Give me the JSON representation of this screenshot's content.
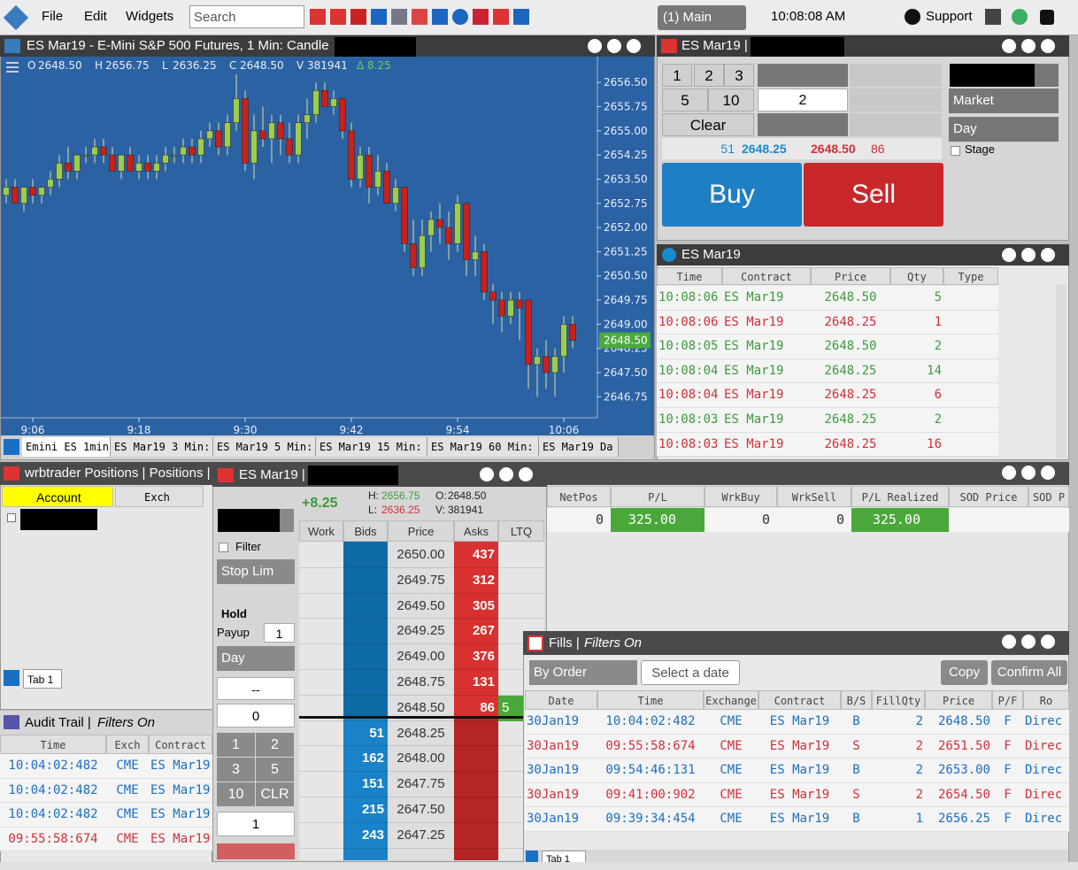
{
  "toolbar": {
    "menu": [
      "File",
      "Edit",
      "Widgets"
    ],
    "search": "Search",
    "workspace": "(1) Main",
    "clock": "10:08:08 AM",
    "support": "Support"
  },
  "chart_panel": {
    "title": "ES Mar19 - E-Mini S&P 500 Futures, 1 Min: Candle",
    "legend": [
      "O",
      "2648.50",
      "H",
      "2656.75",
      "L",
      "2636.25",
      "C",
      "2648.50",
      "V",
      "381941",
      "Δ",
      "8.25"
    ],
    "tabs": [
      "Emini ES 1min",
      "ES Mar19 3 Min:",
      "ES Mar19 5 Min:",
      "ES Mar19 15 Min:",
      "ES Mar19 60 Min:",
      "ES Mar19 Da"
    ]
  },
  "chart_data": {
    "type": "candlestick",
    "up_color": "#9ccc50",
    "down_color": "#c8201a",
    "candles": [
      [
        2653.0,
        2653.5,
        2652.75,
        2653.25
      ],
      [
        2653.25,
        2653.5,
        2652.75,
        2652.75
      ],
      [
        2652.75,
        2653.25,
        2652.5,
        2653.25
      ],
      [
        2653.25,
        2653.5,
        2652.75,
        2653.0
      ],
      [
        2653.0,
        2653.25,
        2652.75,
        2653.25
      ],
      [
        2653.25,
        2653.75,
        2653.0,
        2653.5
      ],
      [
        2653.5,
        2654.25,
        2653.25,
        2654.0
      ],
      [
        2654.0,
        2654.5,
        2653.5,
        2653.75
      ],
      [
        2653.75,
        2654.25,
        2653.5,
        2654.25
      ],
      [
        2654.25,
        2654.5,
        2654.0,
        2654.25
      ],
      [
        2654.25,
        2654.75,
        2654.0,
        2654.5
      ],
      [
        2654.5,
        2654.75,
        2654.0,
        2654.25
      ],
      [
        2654.25,
        2654.5,
        2653.75,
        2653.75
      ],
      [
        2653.75,
        2654.25,
        2653.5,
        2654.25
      ],
      [
        2654.25,
        2654.5,
        2653.75,
        2653.75
      ],
      [
        2653.75,
        2654.25,
        2653.5,
        2654.0
      ],
      [
        2654.0,
        2654.25,
        2653.5,
        2653.75
      ],
      [
        2653.75,
        2654.25,
        2653.5,
        2654.0
      ],
      [
        2654.0,
        2654.5,
        2653.75,
        2654.25
      ],
      [
        2654.25,
        2654.5,
        2654.0,
        2654.25
      ],
      [
        2654.25,
        2654.75,
        2654.0,
        2654.5
      ],
      [
        2654.5,
        2654.75,
        2654.0,
        2654.25
      ],
      [
        2654.25,
        2655.0,
        2654.0,
        2654.75
      ],
      [
        2654.75,
        2655.25,
        2654.5,
        2655.0
      ],
      [
        2655.0,
        2655.25,
        2654.25,
        2654.5
      ],
      [
        2654.5,
        2655.5,
        2654.25,
        2655.25
      ],
      [
        2655.25,
        2656.75,
        2655.0,
        2656.0
      ],
      [
        2656.0,
        2656.25,
        2653.75,
        2654.0
      ],
      [
        2654.0,
        2655.5,
        2653.5,
        2655.0
      ],
      [
        2655.0,
        2655.75,
        2654.5,
        2654.75
      ],
      [
        2654.75,
        2655.5,
        2654.0,
        2655.25
      ],
      [
        2655.25,
        2655.5,
        2654.25,
        2654.75
      ],
      [
        2654.75,
        2655.25,
        2654.0,
        2654.25
      ],
      [
        2654.25,
        2655.5,
        2654.0,
        2655.25
      ],
      [
        2655.25,
        2656.0,
        2654.75,
        2655.5
      ],
      [
        2655.5,
        2656.5,
        2655.25,
        2656.25
      ],
      [
        2656.25,
        2656.5,
        2655.75,
        2655.75
      ],
      [
        2655.75,
        2656.25,
        2655.5,
        2656.0
      ],
      [
        2656.0,
        2656.0,
        2654.75,
        2655.0
      ],
      [
        2655.0,
        2655.25,
        2653.25,
        2653.5
      ],
      [
        2653.5,
        2654.5,
        2653.25,
        2654.25
      ],
      [
        2654.25,
        2654.5,
        2652.75,
        2653.25
      ],
      [
        2653.25,
        2654.25,
        2653.0,
        2653.75
      ],
      [
        2653.75,
        2654.0,
        2652.75,
        2652.75
      ],
      [
        2652.75,
        2653.5,
        2652.5,
        2653.25
      ],
      [
        2653.25,
        2653.25,
        2651.25,
        2651.5
      ],
      [
        2651.5,
        2652.25,
        2650.5,
        2650.75
      ],
      [
        2650.75,
        2652.25,
        2650.5,
        2651.75
      ],
      [
        2651.75,
        2652.5,
        2651.25,
        2652.25
      ],
      [
        2652.25,
        2652.75,
        2651.5,
        2652.0
      ],
      [
        2652.0,
        2652.5,
        2651.0,
        2651.5
      ],
      [
        2651.5,
        2653.0,
        2651.25,
        2652.75
      ],
      [
        2652.75,
        2652.75,
        2650.5,
        2651.0
      ],
      [
        2651.0,
        2651.75,
        2650.5,
        2651.25
      ],
      [
        2651.25,
        2651.5,
        2649.75,
        2650.0
      ],
      [
        2650.0,
        2650.25,
        2649.0,
        2649.75
      ],
      [
        2649.75,
        2650.0,
        2648.75,
        2649.25
      ],
      [
        2649.25,
        2650.0,
        2649.0,
        2649.75
      ],
      [
        2649.75,
        2650.0,
        2648.5,
        2649.5
      ],
      [
        2649.75,
        2649.75,
        2647.0,
        2647.75
      ],
      [
        2647.75,
        2648.25,
        2646.75,
        2648.0
      ],
      [
        2648.0,
        2648.5,
        2647.0,
        2647.5
      ],
      [
        2647.5,
        2648.25,
        2646.75,
        2648.0
      ],
      [
        2648.0,
        2649.25,
        2647.5,
        2649.0
      ],
      [
        2649.0,
        2649.25,
        2648.25,
        2648.5
      ]
    ],
    "ylim": [
      2646.1,
      2657.3
    ],
    "yticks": [
      {
        "value": 2656.5,
        "label": "2656.50"
      },
      {
        "value": 2655.75,
        "label": "2655.75"
      },
      {
        "value": 2655,
        "label": "2655.00"
      },
      {
        "value": 2654.25,
        "label": "2654.25"
      },
      {
        "value": 2653.5,
        "label": "2653.50"
      },
      {
        "value": 2652.75,
        "label": "2652.75"
      },
      {
        "value": 2652,
        "label": "2652.00"
      },
      {
        "value": 2651.25,
        "label": "2651.25"
      },
      {
        "value": 2650.5,
        "label": "2650.50"
      },
      {
        "value": 2649.75,
        "label": "2649.75"
      },
      {
        "value": 2649,
        "label": "2649.00"
      },
      {
        "value": 2648.25,
        "label": "2648.25"
      },
      {
        "value": 2647.5,
        "label": "2647.50"
      },
      {
        "value": 2646.75,
        "label": "2646.75"
      }
    ],
    "xticks": [
      "9:06",
      "9:18",
      "9:30",
      "9:42",
      "9:54",
      "10:06"
    ],
    "last": {
      "value": 2648.5,
      "label": "2648.50"
    }
  },
  "order_ticket": {
    "title": "ES Mar19 |",
    "qty_buttons": [
      "1",
      "2",
      "3",
      "5",
      "10",
      "Clear"
    ],
    "qty": "2",
    "order_type": "Market",
    "tif": "Day",
    "stage": "Stage",
    "bid_size": "51",
    "bid": "2648.25",
    "ask": "2648.50",
    "ask_size": "86",
    "buy": "Buy",
    "sell": "Sell"
  },
  "time_sales": {
    "title": "ES Mar19",
    "columns": [
      "Time",
      "Contract",
      "Price",
      "Qty",
      "Type"
    ],
    "rows": [
      {
        "cells": [
          "10:08:06",
          "ES Mar19",
          "2648.50",
          "5"
        ],
        "color": "#3d9a3d"
      },
      {
        "cells": [
          "10:08:06",
          "ES Mar19",
          "2648.25",
          "1"
        ],
        "color": "#d0303a"
      },
      {
        "cells": [
          "10:08:05",
          "ES Mar19",
          "2648.50",
          "2"
        ],
        "color": "#3d9a3d"
      },
      {
        "cells": [
          "10:08:04",
          "ES Mar19",
          "2648.25",
          "14"
        ],
        "color": "#3d9a3d"
      },
      {
        "cells": [
          "10:08:04",
          "ES Mar19",
          "2648.25",
          "6"
        ],
        "color": "#d0303a"
      },
      {
        "cells": [
          "10:08:03",
          "ES Mar19",
          "2648.25",
          "2"
        ],
        "color": "#3d9a3d"
      },
      {
        "cells": [
          "10:08:03",
          "ES Mar19",
          "2648.25",
          "16"
        ],
        "color": "#d0303a"
      }
    ]
  },
  "positions": {
    "title": "wrbtrader Positions | Positions |",
    "columns_left": [
      "Account",
      "Exch"
    ],
    "columns": [
      "NetPos",
      "P/L",
      "WrkBuy",
      "WrkSell",
      "P/L Realized",
      "SOD Price",
      "SOD P"
    ],
    "row": [
      "0",
      "325.00",
      "0",
      "0",
      "325.00"
    ],
    "tab": "Tab 1"
  },
  "audit": {
    "title": "Audit Trail |",
    "filter": "Filters On",
    "columns": [
      "Time",
      "Exch",
      "Contract"
    ],
    "rows": [
      {
        "cells": [
          "10:04:02:482",
          "CME",
          "ES Mar19"
        ],
        "color": "#1a6fc0"
      },
      {
        "cells": [
          "10:04:02:482",
          "CME",
          "ES Mar19"
        ],
        "color": "#1a6fc0"
      },
      {
        "cells": [
          "10:04:02:482",
          "CME",
          "ES Mar19"
        ],
        "color": "#1a6fc0"
      },
      {
        "cells": [
          "09:55:58:674",
          "CME",
          "ES Mar19"
        ],
        "color": "#d0303a"
      }
    ]
  },
  "dom": {
    "title": "ES Mar19 |",
    "change": "+8.25",
    "h_label": "H:",
    "h": "2656.75",
    "l_label": "L:",
    "l": "2636.25",
    "o_label": "O:",
    "o": "2648.50",
    "v_label": "V:",
    "v": "381941",
    "filter": "Filter",
    "order_type": "Stop Lim",
    "hold": "Hold",
    "payup_label": "Payup",
    "payup": "1",
    "tif": "Day",
    "offset": "--",
    "position": "0",
    "qty_buttons": [
      "1",
      "2",
      "3",
      "5",
      "10",
      "CLR"
    ],
    "qty": "1",
    "ladder": {
      "columns": [
        "Work",
        "Bids",
        "Price",
        "Asks",
        "LTQ"
      ],
      "rows": [
        {
          "price": "2650.00",
          "ask": "437"
        },
        {
          "price": "2649.75",
          "ask": "312"
        },
        {
          "price": "2649.50",
          "ask": "305"
        },
        {
          "price": "2649.25",
          "ask": "267"
        },
        {
          "price": "2649.00",
          "ask": "376"
        },
        {
          "price": "2648.75",
          "ask": "131"
        },
        {
          "price": "2648.50",
          "ask": "86",
          "ltq": "5"
        },
        {
          "price": "2648.25",
          "bid": "51"
        },
        {
          "price": "2648.00",
          "bid": "162"
        },
        {
          "price": "2647.75",
          "bid": "151"
        },
        {
          "price": "2647.50",
          "bid": "215"
        },
        {
          "price": "2647.25",
          "bid": "243"
        }
      ]
    }
  },
  "fills": {
    "title": "Fills |",
    "filter": "Filters On",
    "group": "By Order",
    "date": "Select a date",
    "copy": "Copy",
    "confirm": "Confirm All",
    "columns": [
      "Date",
      "Time",
      "Exchange",
      "Contract",
      "B/S",
      "FillQty",
      "Price",
      "P/F",
      "Ro"
    ],
    "rows": [
      {
        "cells": [
          "30Jan19",
          "10:04:02:482",
          "CME",
          "ES Mar19",
          "B",
          "2",
          "2648.50",
          "F",
          "Direc"
        ],
        "color": "#1a6fc0"
      },
      {
        "cells": [
          "30Jan19",
          "09:55:58:674",
          "CME",
          "ES Mar19",
          "S",
          "2",
          "2651.50",
          "F",
          "Direc"
        ],
        "color": "#d0303a"
      },
      {
        "cells": [
          "30Jan19",
          "09:54:46:131",
          "CME",
          "ES Mar19",
          "B",
          "2",
          "2653.00",
          "F",
          "Direc"
        ],
        "color": "#1a6fc0"
      },
      {
        "cells": [
          "30Jan19",
          "09:41:00:902",
          "CME",
          "ES Mar19",
          "S",
          "2",
          "2654.50",
          "F",
          "Direc"
        ],
        "color": "#d0303a"
      },
      {
        "cells": [
          "30Jan19",
          "09:39:34:454",
          "CME",
          "ES Mar19",
          "B",
          "1",
          "2656.25",
          "F",
          "Direc"
        ],
        "color": "#1a6fc0"
      }
    ],
    "tab": "Tab 1"
  }
}
